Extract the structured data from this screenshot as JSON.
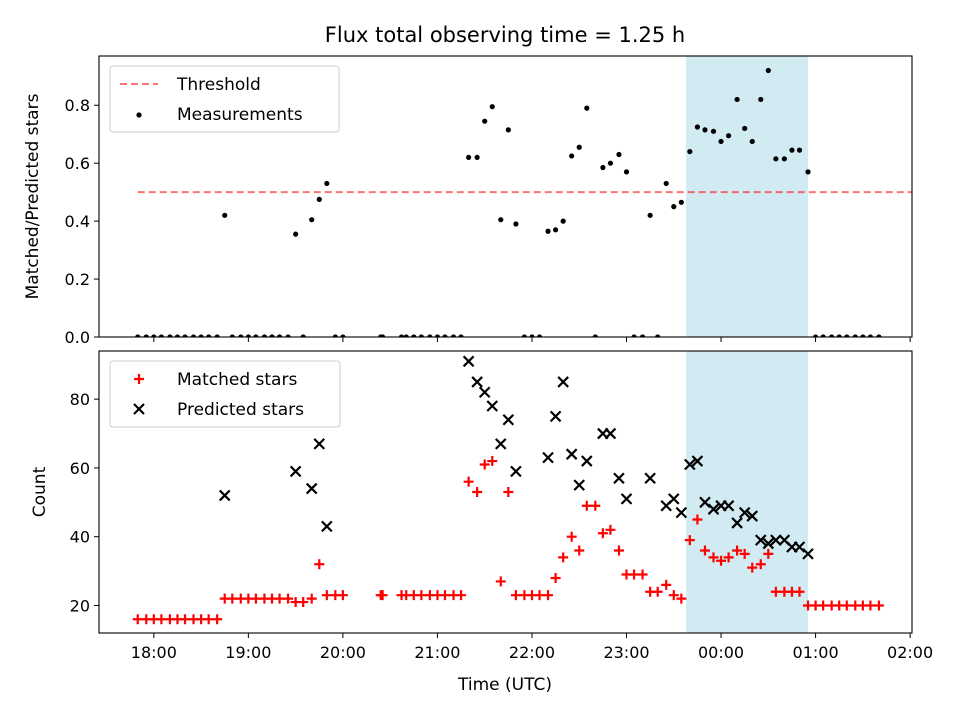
{
  "figure": {
    "title": "Flux total observing time = 1.25 h",
    "xlabel": "Time (UTC)"
  },
  "chart_data": [
    {
      "type": "scatter",
      "ylabel": "Matched/Predicted stars",
      "ylim": [
        0,
        0.97
      ],
      "yticks": [
        "0.0",
        "0.2",
        "0.4",
        "0.6",
        "0.8"
      ],
      "ytick_values": [
        0,
        0.2,
        0.4,
        0.6,
        0.8
      ],
      "xticks": [
        "18:00",
        "19:00",
        "20:00",
        "21:00",
        "22:00",
        "23:00",
        "00:00",
        "01:00",
        "02:00"
      ],
      "xtick_values": [
        18,
        19,
        20,
        21,
        22,
        23,
        24,
        25,
        26
      ],
      "xlim": [
        17.42,
        26.02
      ],
      "highlight_span": {
        "x": [
          23.63,
          24.92
        ],
        "color": "#add8e6"
      },
      "legend": {
        "position": "upper left",
        "entries": [
          "Threshold",
          "Measurements"
        ]
      },
      "threshold": {
        "name": "Threshold",
        "y": 0.5,
        "x": [
          17.83,
          26.7
        ],
        "color": "#ff0000"
      },
      "series": [
        {
          "name": "Measurements",
          "color": "#000000",
          "marker": "dot",
          "points": [
            [
              17.83,
              0
            ],
            [
              17.92,
              0
            ],
            [
              18.0,
              0
            ],
            [
              18.08,
              0
            ],
            [
              18.17,
              0
            ],
            [
              18.25,
              0
            ],
            [
              18.33,
              0
            ],
            [
              18.42,
              0
            ],
            [
              18.5,
              0
            ],
            [
              18.58,
              0
            ],
            [
              18.67,
              0
            ],
            [
              18.75,
              0.42
            ],
            [
              18.83,
              0
            ],
            [
              18.92,
              0
            ],
            [
              19.0,
              0
            ],
            [
              19.08,
              0
            ],
            [
              19.17,
              0
            ],
            [
              19.25,
              0
            ],
            [
              19.33,
              0
            ],
            [
              19.42,
              0
            ],
            [
              19.5,
              0.355
            ],
            [
              19.58,
              0
            ],
            [
              19.67,
              0.405
            ],
            [
              19.75,
              0.475
            ],
            [
              19.83,
              0.53
            ],
            [
              19.92,
              0
            ],
            [
              20.0,
              0
            ],
            [
              20.4,
              0
            ],
            [
              20.42,
              0
            ],
            [
              20.62,
              0
            ],
            [
              20.67,
              0
            ],
            [
              20.75,
              0
            ],
            [
              20.83,
              0
            ],
            [
              20.92,
              0
            ],
            [
              21.0,
              0
            ],
            [
              21.08,
              0
            ],
            [
              21.17,
              0
            ],
            [
              21.25,
              0
            ],
            [
              21.33,
              0.62
            ],
            [
              21.42,
              0.62
            ],
            [
              21.5,
              0.745
            ],
            [
              21.58,
              0.795
            ],
            [
              21.67,
              0.405
            ],
            [
              21.75,
              0.715
            ],
            [
              21.83,
              0.39
            ],
            [
              21.92,
              0
            ],
            [
              22.0,
              0
            ],
            [
              22.08,
              0
            ],
            [
              22.17,
              0.365
            ],
            [
              22.25,
              0.37
            ],
            [
              22.33,
              0.4
            ],
            [
              22.42,
              0.625
            ],
            [
              22.5,
              0.655
            ],
            [
              22.58,
              0.79
            ],
            [
              22.67,
              0
            ],
            [
              22.75,
              0.585
            ],
            [
              22.83,
              0.6
            ],
            [
              22.92,
              0.63
            ],
            [
              23.0,
              0.57
            ],
            [
              23.08,
              0
            ],
            [
              23.17,
              0
            ],
            [
              23.25,
              0.42
            ],
            [
              23.33,
              0
            ],
            [
              23.42,
              0.53
            ],
            [
              23.5,
              0.45
            ],
            [
              23.58,
              0.465
            ],
            [
              23.67,
              0.64
            ],
            [
              23.75,
              0.725
            ],
            [
              23.83,
              0.715
            ],
            [
              23.92,
              0.71
            ],
            [
              24.0,
              0.675
            ],
            [
              24.08,
              0.695
            ],
            [
              24.17,
              0.82
            ],
            [
              24.25,
              0.72
            ],
            [
              24.33,
              0.675
            ],
            [
              24.42,
              0.82
            ],
            [
              24.5,
              0.92
            ],
            [
              24.58,
              0.615
            ],
            [
              24.67,
              0.615
            ],
            [
              24.75,
              0.645
            ],
            [
              24.83,
              0.645
            ],
            [
              24.92,
              0.57
            ],
            [
              25.0,
              0
            ],
            [
              25.08,
              0
            ],
            [
              25.17,
              0
            ],
            [
              25.25,
              0
            ],
            [
              25.33,
              0
            ],
            [
              25.42,
              0
            ],
            [
              25.5,
              0
            ],
            [
              25.58,
              0
            ],
            [
              25.67,
              0
            ]
          ]
        }
      ]
    },
    {
      "type": "scatter",
      "ylabel": "Count",
      "ylim": [
        12,
        94
      ],
      "yticks": [
        "20",
        "40",
        "60",
        "80"
      ],
      "ytick_values": [
        20,
        40,
        60,
        80
      ],
      "xticks": [
        "18:00",
        "19:00",
        "20:00",
        "21:00",
        "22:00",
        "23:00",
        "00:00",
        "01:00",
        "02:00"
      ],
      "xtick_values": [
        18,
        19,
        20,
        21,
        22,
        23,
        24,
        25,
        26
      ],
      "xlim": [
        17.42,
        26.02
      ],
      "highlight_span": {
        "x": [
          23.63,
          24.92
        ],
        "color": "#add8e6"
      },
      "legend": {
        "position": "upper left",
        "entries": [
          "Matched stars",
          "Predicted stars"
        ]
      },
      "series": [
        {
          "name": "Matched stars",
          "color": "#ff0000",
          "marker": "plus",
          "points": [
            [
              17.83,
              16
            ],
            [
              17.92,
              16
            ],
            [
              18.0,
              16
            ],
            [
              18.08,
              16
            ],
            [
              18.17,
              16
            ],
            [
              18.25,
              16
            ],
            [
              18.33,
              16
            ],
            [
              18.42,
              16
            ],
            [
              18.5,
              16
            ],
            [
              18.58,
              16
            ],
            [
              18.67,
              16
            ],
            [
              18.75,
              22
            ],
            [
              18.83,
              22
            ],
            [
              18.92,
              22
            ],
            [
              19.0,
              22
            ],
            [
              19.08,
              22
            ],
            [
              19.17,
              22
            ],
            [
              19.25,
              22
            ],
            [
              19.33,
              22
            ],
            [
              19.42,
              22
            ],
            [
              19.5,
              21
            ],
            [
              19.58,
              21
            ],
            [
              19.67,
              22
            ],
            [
              19.75,
              32
            ],
            [
              19.83,
              23
            ],
            [
              19.92,
              23
            ],
            [
              20.0,
              23
            ],
            [
              20.4,
              23
            ],
            [
              20.42,
              23
            ],
            [
              20.62,
              23
            ],
            [
              20.67,
              23
            ],
            [
              20.75,
              23
            ],
            [
              20.83,
              23
            ],
            [
              20.92,
              23
            ],
            [
              21.0,
              23
            ],
            [
              21.08,
              23
            ],
            [
              21.17,
              23
            ],
            [
              21.25,
              23
            ],
            [
              21.33,
              56
            ],
            [
              21.42,
              53
            ],
            [
              21.5,
              61
            ],
            [
              21.58,
              62
            ],
            [
              21.67,
              27
            ],
            [
              21.75,
              53
            ],
            [
              21.83,
              23
            ],
            [
              21.92,
              23
            ],
            [
              22.0,
              23
            ],
            [
              22.08,
              23
            ],
            [
              22.17,
              23
            ],
            [
              22.25,
              28
            ],
            [
              22.33,
              34
            ],
            [
              22.42,
              40
            ],
            [
              22.5,
              36
            ],
            [
              22.58,
              49
            ],
            [
              22.67,
              49
            ],
            [
              22.75,
              41
            ],
            [
              22.83,
              42
            ],
            [
              22.92,
              36
            ],
            [
              23.0,
              29
            ],
            [
              23.08,
              29
            ],
            [
              23.17,
              29
            ],
            [
              23.25,
              24
            ],
            [
              23.33,
              24
            ],
            [
              23.42,
              26
            ],
            [
              23.5,
              23
            ],
            [
              23.58,
              22
            ],
            [
              23.67,
              39
            ],
            [
              23.75,
              45
            ],
            [
              23.83,
              36
            ],
            [
              23.92,
              34
            ],
            [
              24.0,
              33
            ],
            [
              24.08,
              34
            ],
            [
              24.17,
              36
            ],
            [
              24.25,
              35
            ],
            [
              24.33,
              31
            ],
            [
              24.42,
              32
            ],
            [
              24.5,
              35
            ],
            [
              24.58,
              24
            ],
            [
              24.67,
              24
            ],
            [
              24.75,
              24
            ],
            [
              24.83,
              24
            ],
            [
              24.92,
              20
            ],
            [
              25.0,
              20
            ],
            [
              25.08,
              20
            ],
            [
              25.17,
              20
            ],
            [
              25.25,
              20
            ],
            [
              25.33,
              20
            ],
            [
              25.42,
              20
            ],
            [
              25.5,
              20
            ],
            [
              25.58,
              20
            ],
            [
              25.67,
              20
            ]
          ]
        },
        {
          "name": "Predicted stars",
          "color": "#000000",
          "marker": "x",
          "points": [
            [
              18.75,
              52
            ],
            [
              19.5,
              59
            ],
            [
              19.67,
              54
            ],
            [
              19.75,
              67
            ],
            [
              19.83,
              43
            ],
            [
              21.33,
              91
            ],
            [
              21.42,
              85
            ],
            [
              21.5,
              82
            ],
            [
              21.58,
              78
            ],
            [
              21.67,
              67
            ],
            [
              21.75,
              74
            ],
            [
              21.83,
              59
            ],
            [
              22.17,
              63
            ],
            [
              22.25,
              75
            ],
            [
              22.33,
              85
            ],
            [
              22.42,
              64
            ],
            [
              22.5,
              55
            ],
            [
              22.58,
              62
            ],
            [
              22.75,
              70
            ],
            [
              22.83,
              70
            ],
            [
              22.92,
              57
            ],
            [
              23.0,
              51
            ],
            [
              23.25,
              57
            ],
            [
              23.42,
              49
            ],
            [
              23.5,
              51
            ],
            [
              23.58,
              47
            ],
            [
              23.67,
              61
            ],
            [
              23.75,
              62
            ],
            [
              23.83,
              50
            ],
            [
              23.92,
              48
            ],
            [
              24.0,
              49
            ],
            [
              24.08,
              49
            ],
            [
              24.17,
              44
            ],
            [
              24.25,
              47
            ],
            [
              24.33,
              46
            ],
            [
              24.42,
              39
            ],
            [
              24.5,
              38
            ],
            [
              24.58,
              39
            ],
            [
              24.67,
              39
            ],
            [
              24.75,
              37
            ],
            [
              24.83,
              37
            ],
            [
              24.92,
              35
            ]
          ]
        }
      ]
    }
  ]
}
